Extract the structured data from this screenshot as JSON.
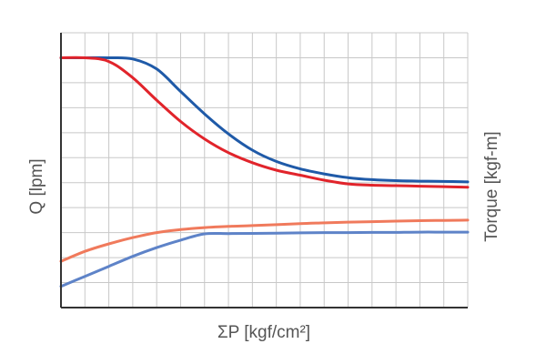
{
  "chart_data": {
    "type": "line",
    "xlabel": "ΣP [kgf/cm²]",
    "ylabel": "Q [lpm]",
    "y2label": "Torque [kgf-m]",
    "xlim": [
      0,
      17
    ],
    "ylim": [
      0,
      11
    ],
    "grid": true,
    "colors": {
      "grid": "#c8c8c8",
      "axis": "#333333",
      "text": "#555555"
    },
    "series": [
      {
        "color": "#1f5aa8",
        "x": [
          0,
          1,
          2,
          3,
          4,
          5,
          6,
          7,
          8,
          9,
          10,
          11,
          12,
          13,
          14,
          15,
          16,
          17
        ],
        "y": [
          10.0,
          10.0,
          10.0,
          9.95,
          9.55,
          8.65,
          7.75,
          6.95,
          6.3,
          5.85,
          5.55,
          5.35,
          5.2,
          5.12,
          5.08,
          5.06,
          5.05,
          5.03
        ]
      },
      {
        "color": "#e1242b",
        "x": [
          0,
          1,
          2,
          3,
          4,
          5,
          6,
          7,
          8,
          9,
          10,
          11,
          12,
          13,
          14,
          15,
          16,
          17
        ],
        "y": [
          10.0,
          10.0,
          9.85,
          9.2,
          8.3,
          7.45,
          6.75,
          6.2,
          5.8,
          5.5,
          5.3,
          5.1,
          4.95,
          4.9,
          4.88,
          4.86,
          4.84,
          4.82
        ]
      },
      {
        "color": "#f07a5c",
        "x": [
          0,
          1,
          2,
          3,
          4,
          5,
          6,
          7,
          8,
          9,
          10,
          11,
          12,
          13,
          14,
          15,
          16,
          17
        ],
        "y": [
          1.85,
          2.25,
          2.55,
          2.8,
          3.0,
          3.12,
          3.2,
          3.25,
          3.28,
          3.32,
          3.36,
          3.39,
          3.42,
          3.44,
          3.46,
          3.48,
          3.49,
          3.5
        ]
      },
      {
        "color": "#5e83c8",
        "x": [
          0,
          1,
          2,
          3,
          4,
          5,
          6,
          7,
          8,
          9,
          10,
          11,
          12,
          13,
          14,
          15,
          16,
          17
        ],
        "y": [
          0.85,
          1.25,
          1.65,
          2.05,
          2.4,
          2.7,
          2.95,
          2.96,
          2.97,
          2.98,
          2.99,
          3.0,
          3.0,
          3.01,
          3.01,
          3.02,
          3.02,
          3.02
        ]
      }
    ]
  }
}
